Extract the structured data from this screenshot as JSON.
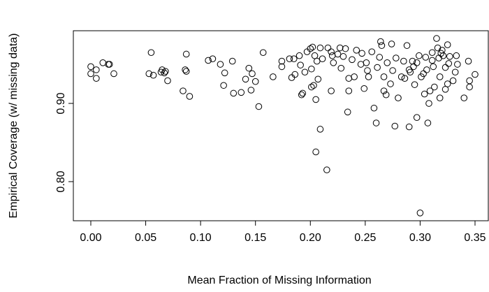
{
  "chart_data": {
    "type": "scatter",
    "x_label": "Mean Fraction of Missing Information",
    "y_label": "Empirical Coverage (w/ missing data)",
    "xlim": [
      -0.0159,
      0.3621
    ],
    "ylim": [
      0.75,
      0.9929
    ],
    "xticks": [
      {
        "value": 0,
        "label": "0.00"
      },
      0.05,
      {
        "value": 0.1,
        "label": "0.10"
      },
      0.15,
      {
        "value": 0.2,
        "label": "0.20"
      },
      0.25,
      {
        "value": 0.3,
        "label": "0.30"
      },
      0.35
    ],
    "yticks": [
      {
        "value": 0.8,
        "label": "0.80"
      },
      {
        "value": 0.9,
        "label": "0.90"
      }
    ],
    "color": "#000000",
    "x": [
      0.0,
      0.0,
      0.005,
      0.005,
      0.011,
      0.016,
      0.017,
      0.021,
      0.055,
      0.053,
      0.057,
      0.065,
      0.064,
      0.067,
      0.068,
      0.087,
      0.084,
      0.07,
      0.09,
      0.086,
      0.087,
      0.107,
      0.111,
      0.118,
      0.122,
      0.121,
      0.13,
      0.137,
      0.129,
      0.141,
      0.144,
      0.147,
      0.146,
      0.15,
      0.153,
      0.157,
      0.166,
      0.174,
      0.174,
      0.181,
      0.185,
      0.183,
      0.186,
      0.195,
      0.193,
      0.192,
      0.19,
      0.197,
      0.2,
      0.202,
      0.204,
      0.206,
      0.201,
      0.201,
      0.203,
      0.207,
      0.205,
      0.209,
      0.211,
      0.209,
      0.205,
      0.215,
      0.216,
      0.219,
      0.22,
      0.221,
      0.225,
      0.227,
      0.23,
      0.232,
      0.234,
      0.235,
      0.238,
      0.24,
      0.242,
      0.247,
      0.249,
      0.251,
      0.252,
      0.253,
      0.256,
      0.258,
      0.26,
      0.261,
      0.263,
      0.265,
      0.267,
      0.267,
      0.269,
      0.27,
      0.273,
      0.275,
      0.277,
      0.278,
      0.28,
      0.283,
      0.285,
      0.288,
      0.29,
      0.29,
      0.291,
      0.294,
      0.295,
      0.297,
      0.299,
      0.3,
      0.301,
      0.303,
      0.304,
      0.306,
      0.307,
      0.309,
      0.311,
      0.312,
      0.313,
      0.315,
      0.316,
      0.317,
      0.318,
      0.319,
      0.321,
      0.323,
      0.323,
      0.325,
      0.326,
      0.327,
      0.33,
      0.332,
      0.333,
      0.334,
      0.34,
      0.344,
      0.345,
      0.345,
      0.35,
      0.32,
      0.311,
      0.305,
      0.286,
      0.274,
      0.246,
      0.228,
      0.219,
      0.191,
      0.235,
      0.264,
      0.293,
      0.318,
      0.297,
      0.308,
      0.325
    ],
    "values": [
      0.947,
      0.938,
      0.943,
      0.932,
      0.952,
      0.95,
      0.95,
      0.938,
      0.965,
      0.938,
      0.936,
      0.943,
      0.94,
      0.939,
      0.941,
      0.941,
      0.916,
      0.929,
      0.909,
      0.943,
      0.963,
      0.955,
      0.957,
      0.95,
      0.939,
      0.923,
      0.913,
      0.914,
      0.954,
      0.931,
      0.945,
      0.938,
      0.917,
      0.928,
      0.896,
      0.965,
      0.934,
      0.954,
      0.947,
      0.957,
      0.957,
      0.933,
      0.937,
      0.94,
      0.913,
      0.911,
      0.961,
      0.966,
      0.97,
      0.972,
      0.961,
      0.954,
      0.944,
      0.921,
      0.923,
      0.931,
      0.905,
      0.971,
      0.957,
      0.867,
      0.838,
      0.815,
      0.971,
      0.966,
      0.961,
      0.952,
      0.963,
      0.971,
      0.96,
      0.97,
      0.889,
      0.916,
      0.956,
      0.934,
      0.968,
      0.964,
      0.919,
      0.952,
      0.942,
      0.934,
      0.966,
      0.894,
      0.875,
      0.946,
      0.959,
      0.974,
      0.934,
      0.916,
      0.911,
      0.952,
      0.925,
      0.942,
      0.871,
      0.958,
      0.907,
      0.934,
      0.954,
      0.974,
      0.943,
      0.87,
      0.94,
      0.947,
      0.924,
      0.952,
      0.961,
      0.76,
      0.934,
      0.938,
      0.912,
      0.943,
      0.875,
      0.916,
      0.955,
      0.947,
      0.921,
      0.983,
      0.971,
      0.958,
      0.934,
      0.964,
      0.961,
      0.946,
      0.918,
      0.975,
      0.951,
      0.96,
      0.929,
      0.94,
      0.961,
      0.95,
      0.907,
      0.954,
      0.921,
      0.929,
      0.937,
      0.968,
      0.965,
      0.959,
      0.932,
      0.976,
      0.95,
      0.945,
      0.916,
      0.949,
      0.932,
      0.979,
      0.954,
      0.907,
      0.882,
      0.9,
      0.925
    ]
  }
}
